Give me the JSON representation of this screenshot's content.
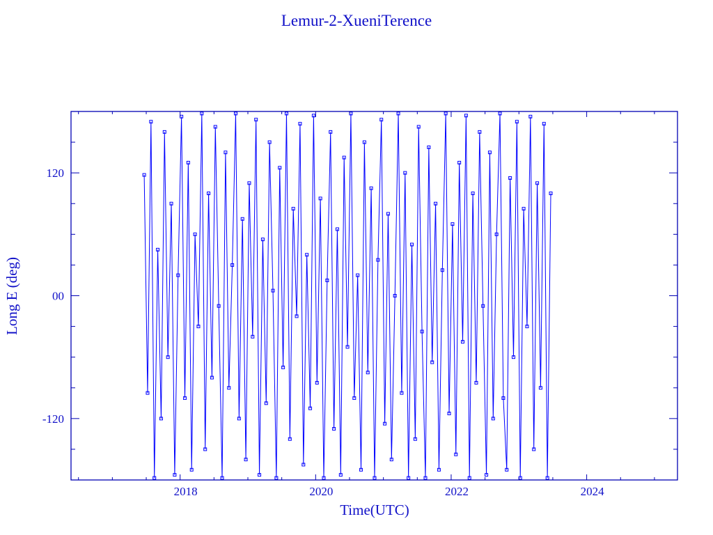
{
  "chart_data": {
    "type": "line",
    "title": "Lemur-2-XueniTerence",
    "xlabel": "Time(UTC)",
    "ylabel": "Long E (deg)",
    "xlim": [
      2016.39,
      2025.34
    ],
    "ylim": [
      -180,
      180
    ],
    "xticks": [
      2018,
      2020,
      2022,
      2024
    ],
    "xtick_labels": [
      "2018",
      "2020",
      "2022",
      "2024"
    ],
    "yticks": [
      -120,
      0,
      120
    ],
    "ytick_labels": [
      "-120",
      "00",
      "120"
    ],
    "grid": false,
    "markers": "square",
    "colors": {
      "series": "#0000ff",
      "axes": "#0000b4",
      "text": "#1010c8"
    },
    "x": [
      2017.47,
      2017.52,
      2017.57,
      2017.62,
      2017.67,
      2017.72,
      2017.77,
      2017.82,
      2017.87,
      2017.92,
      2017.97,
      2018.02,
      2018.07,
      2018.12,
      2018.17,
      2018.22,
      2018.27,
      2018.32,
      2018.37,
      2018.42,
      2018.47,
      2018.52,
      2018.57,
      2018.62,
      2018.67,
      2018.72,
      2018.77,
      2018.82,
      2018.87,
      2018.92,
      2018.97,
      2019.02,
      2019.07,
      2019.12,
      2019.17,
      2019.22,
      2019.27,
      2019.32,
      2019.37,
      2019.42,
      2019.47,
      2019.52,
      2019.57,
      2019.62,
      2019.67,
      2019.72,
      2019.77,
      2019.82,
      2019.87,
      2019.92,
      2019.97,
      2020.02,
      2020.07,
      2020.12,
      2020.17,
      2020.22,
      2020.27,
      2020.32,
      2020.37,
      2020.42,
      2020.47,
      2020.52,
      2020.57,
      2020.62,
      2020.67,
      2020.72,
      2020.77,
      2020.82,
      2020.87,
      2020.92,
      2020.97,
      2021.02,
      2021.07,
      2021.12,
      2021.17,
      2021.22,
      2021.27,
      2021.32,
      2021.37,
      2021.42,
      2021.47,
      2021.52,
      2021.57,
      2021.62,
      2021.67,
      2021.72,
      2021.77,
      2021.82,
      2021.87,
      2021.92,
      2021.97,
      2022.02,
      2022.07,
      2022.12,
      2022.17,
      2022.22,
      2022.27,
      2022.32,
      2022.37,
      2022.42,
      2022.47,
      2022.52,
      2022.57,
      2022.62,
      2022.67,
      2022.72,
      2022.77,
      2022.82,
      2022.87,
      2022.92,
      2022.97,
      2023.02,
      2023.07,
      2023.12,
      2023.17,
      2023.22,
      2023.27,
      2023.32,
      2023.37,
      2023.42,
      2023.47
    ],
    "y": [
      118,
      -95,
      170,
      -178,
      45,
      -120,
      160,
      -60,
      90,
      -175,
      20,
      175,
      -100,
      130,
      -170,
      60,
      -30,
      178,
      -150,
      100,
      -80,
      165,
      -10,
      -178,
      140,
      -90,
      30,
      178,
      -120,
      75,
      -160,
      110,
      -40,
      172,
      -175,
      55,
      -105,
      150,
      5,
      -178,
      125,
      -70,
      178,
      -140,
      85,
      -20,
      168,
      -165,
      40,
      -110,
      176,
      -85,
      95,
      -178,
      15,
      160,
      -130,
      65,
      -175,
      135,
      -50,
      178,
      -100,
      20,
      -170,
      150,
      -75,
      105,
      -178,
      35,
      172,
      -125,
      80,
      -160,
      0,
      178,
      -95,
      120,
      -178,
      50,
      -140,
      165,
      -35,
      -178,
      145,
      -65,
      90,
      -170,
      25,
      178,
      -115,
      70,
      -155,
      130,
      -45,
      176,
      -178,
      100,
      -85,
      160,
      -10,
      -175,
      140,
      -120,
      60,
      178,
      -100,
      -170,
      115,
      -60,
      170,
      -178,
      85,
      -30,
      175,
      -150,
      110,
      -90,
      168,
      -178,
      100
    ]
  }
}
